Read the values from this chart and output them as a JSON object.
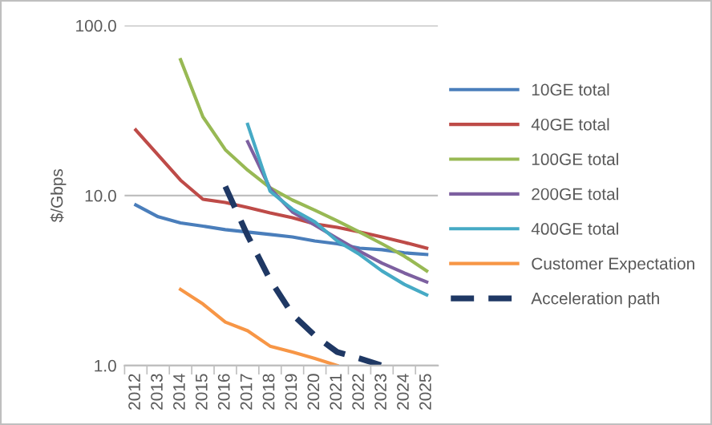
{
  "chart_data": {
    "type": "line",
    "ylabel": "$/Gbps",
    "categories": [
      "2012",
      "2013",
      "2014",
      "2015",
      "2016",
      "2017",
      "2018",
      "2019",
      "2020",
      "2021",
      "2022",
      "2023",
      "2024",
      "2025"
    ],
    "log": true,
    "ylim": [
      1,
      100
    ],
    "yticks": [
      {
        "value": 1,
        "label": "1.0"
      },
      {
        "value": 10,
        "label": "10.0"
      },
      {
        "value": 100,
        "label": "100.0"
      }
    ],
    "grid": "y",
    "legend": "right",
    "marker": "none",
    "series": [
      {
        "name": "10GE total",
        "color": "#4a7ebb",
        "values": [
          8.8,
          7.5,
          6.9,
          6.6,
          6.3,
          6.1,
          5.9,
          5.7,
          5.4,
          5.2,
          4.9,
          4.8,
          4.6,
          4.5
        ]
      },
      {
        "name": "40GE total",
        "color": "#be4b48",
        "values": [
          24.3,
          17.3,
          12.3,
          9.5,
          9.1,
          8.5,
          7.9,
          7.4,
          6.8,
          6.5,
          6.1,
          5.7,
          5.3,
          4.9
        ]
      },
      {
        "name": "100GE total",
        "color": "#98b954",
        "values": [
          null,
          null,
          63,
          29,
          18.6,
          14.1,
          11.1,
          9.4,
          8.2,
          7.1,
          6.1,
          5.2,
          4.4,
          3.6
        ]
      },
      {
        "name": "200GE total",
        "color": "#7d60a0",
        "values": [
          null,
          null,
          null,
          null,
          null,
          20.7,
          11.0,
          8.0,
          6.7,
          5.6,
          4.7,
          4.0,
          3.5,
          3.1
        ]
      },
      {
        "name": "400GE total",
        "color": "#46aac5",
        "values": [
          null,
          null,
          null,
          null,
          null,
          26.2,
          10.6,
          8.3,
          7.0,
          5.4,
          4.5,
          3.6,
          3.0,
          2.6
        ]
      },
      {
        "name": "Customer Expectation",
        "color": "#f79646",
        "values": [
          null,
          null,
          2.8,
          2.3,
          1.8,
          1.6,
          1.3,
          1.2,
          1.1,
          1.0,
          null,
          null,
          null,
          null
        ]
      },
      {
        "name": "Acceleration path",
        "color": "#1f3864",
        "line_style": "dashed",
        "values": [
          null,
          null,
          null,
          null,
          11.3,
          5.8,
          3.2,
          2.0,
          1.5,
          1.2,
          1.1,
          1.0,
          null,
          null
        ]
      }
    ]
  }
}
